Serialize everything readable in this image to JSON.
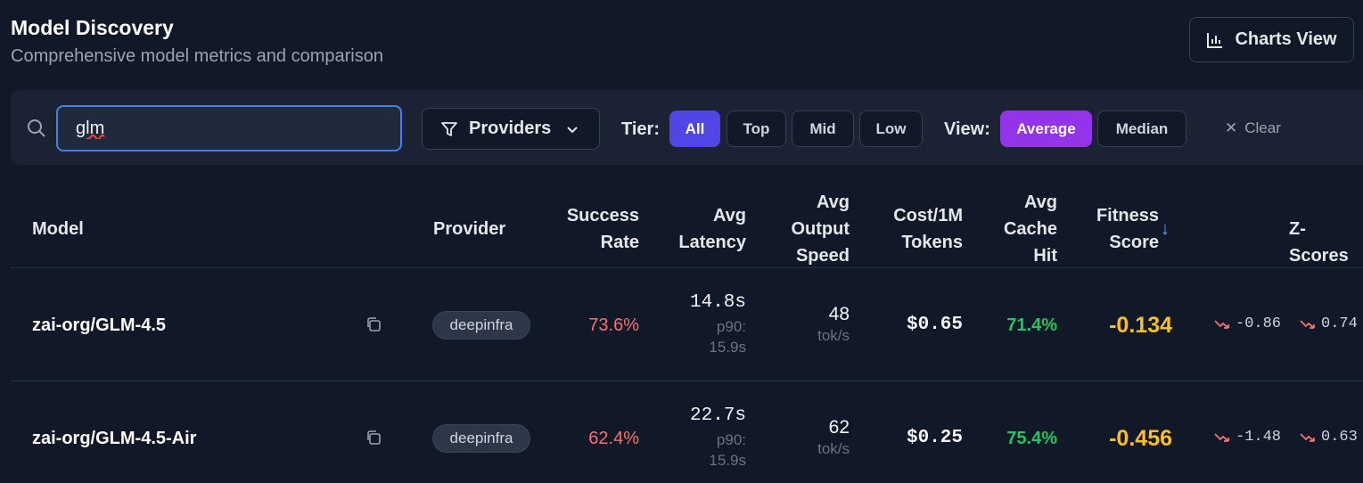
{
  "header": {
    "title": "Model Discovery",
    "subtitle": "Comprehensive model metrics and comparison",
    "charts_button": "Charts View"
  },
  "filters": {
    "search_value": "glm",
    "providers_label": "Providers",
    "tier_label": "Tier:",
    "tiers": [
      "All",
      "Top",
      "Mid",
      "Low"
    ],
    "tier_selected": "All",
    "view_label": "View:",
    "views": [
      "Average",
      "Median"
    ],
    "view_selected": "Average",
    "clear_label": "Clear"
  },
  "table": {
    "headers": {
      "model": "Model",
      "provider": "Provider",
      "success_rate": [
        "Success",
        "Rate"
      ],
      "avg_latency": [
        "Avg",
        "Latency"
      ],
      "avg_output_speed": [
        "Avg",
        "Output",
        "Speed"
      ],
      "cost": [
        "Cost/1M",
        "Tokens"
      ],
      "cache_hit": [
        "Avg",
        "Cache",
        "Hit"
      ],
      "fitness": [
        "Fitness",
        "Score"
      ],
      "fitness_sort_arrow": "↓",
      "zscores": "Z-Scores"
    },
    "rows": [
      {
        "model": "zai-org/GLM-4.5",
        "provider": "deepinfra",
        "success_rate": "73.6%",
        "latency": "14.8s",
        "latency_p90_label": "p90:",
        "latency_p90": "15.9s",
        "speed": "48",
        "speed_unit": "tok/s",
        "cost": "$0.65",
        "cache_hit": "71.4%",
        "fitness": "-0.134",
        "z1": "-0.86",
        "z2": "0.74"
      },
      {
        "model": "zai-org/GLM-4.5-Air",
        "provider": "deepinfra",
        "success_rate": "62.4%",
        "latency": "22.7s",
        "latency_p90_label": "p90:",
        "latency_p90": "15.9s",
        "speed": "62",
        "speed_unit": "tok/s",
        "cost": "$0.25",
        "cache_hit": "75.4%",
        "fitness": "-0.456",
        "z1": "-1.48",
        "z2": "0.63"
      }
    ]
  },
  "colors": {
    "accent_blue": "#4f46e5",
    "accent_purple": "#9333ea",
    "fitness": "#fbbf24",
    "negative": "#f87171",
    "positive": "#22c55e"
  }
}
